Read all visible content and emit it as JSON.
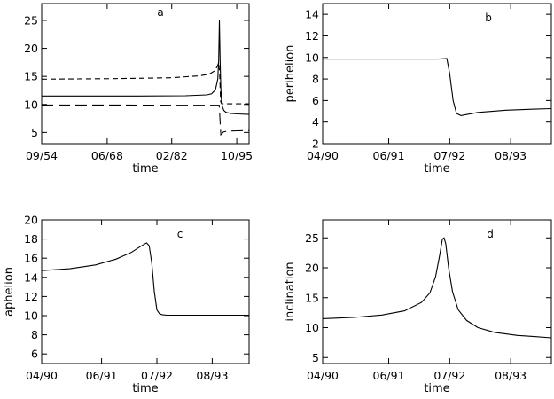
{
  "chart_data": [
    {
      "type": "line",
      "panel_label": "a",
      "xlabel": "time",
      "ylabel": "",
      "xlim": [
        1954.7,
        1998.4
      ],
      "ylim": [
        3,
        28
      ],
      "x_ticks": [
        {
          "value": 1954.7,
          "label": "09/54"
        },
        {
          "value": 1968.5,
          "label": "06/68"
        },
        {
          "value": 1982.1,
          "label": "02/82"
        },
        {
          "value": 1995.8,
          "label": "10/95"
        }
      ],
      "y_ticks": [
        5,
        10,
        15,
        20,
        25
      ],
      "series": [
        {
          "dash": "solid",
          "x": [
            1954.7,
            1975,
            1985,
            1989.5,
            1990.5,
            1991.3,
            1991.8,
            1992.0,
            1992.15,
            1992.3,
            1992.45,
            1992.6,
            1992.8,
            1993.1,
            1993.5,
            1994.5,
            1996,
            1998.4
          ],
          "y": [
            11.5,
            11.5,
            11.55,
            11.7,
            11.9,
            12.6,
            14.5,
            18.0,
            25.0,
            18.0,
            13.0,
            10.6,
            9.5,
            8.9,
            8.6,
            8.4,
            8.3,
            8.2
          ]
        },
        {
          "dash": "short-dash",
          "x": [
            1954.7,
            1970,
            1982,
            1988,
            1990,
            1991.2,
            1991.8,
            1992.0,
            1992.2,
            1992.4,
            1992.6,
            1993.2,
            1994,
            1996,
            1998.4
          ],
          "y": [
            14.5,
            14.6,
            14.75,
            15.1,
            15.4,
            16.0,
            17.0,
            17.5,
            15.5,
            10.5,
            10.15,
            10.1,
            10.1,
            10.1,
            10.1
          ]
        },
        {
          "dash": "long-dash",
          "x": [
            1954.7,
            1970,
            1985,
            1990,
            1991.5,
            1992.1,
            1992.3,
            1992.45,
            1992.6,
            1993.0,
            1994,
            1996,
            1998.4
          ],
          "y": [
            9.9,
            9.9,
            9.85,
            9.85,
            9.85,
            9.85,
            7.0,
            4.6,
            4.7,
            5.1,
            5.25,
            5.3,
            5.35
          ]
        }
      ]
    },
    {
      "type": "line",
      "panel_label": "b",
      "xlabel": "time",
      "ylabel": "perihelion",
      "xlim": [
        1990.25,
        1994.3
      ],
      "ylim": [
        2,
        15
      ],
      "x_ticks": [
        {
          "value": 1990.25,
          "label": "04/90"
        },
        {
          "value": 1991.42,
          "label": "06/91"
        },
        {
          "value": 1992.5,
          "label": "07/92"
        },
        {
          "value": 1993.58,
          "label": "08/93"
        }
      ],
      "y_ticks": [
        2,
        4,
        6,
        8,
        10,
        12,
        14
      ],
      "series": [
        {
          "dash": "solid",
          "x": [
            1990.25,
            1991.0,
            1991.8,
            1992.3,
            1992.45,
            1992.5,
            1992.56,
            1992.62,
            1992.7,
            1992.8,
            1993.0,
            1993.5,
            1994.0,
            1994.3
          ],
          "y": [
            9.85,
            9.85,
            9.85,
            9.85,
            9.9,
            8.5,
            6.0,
            4.8,
            4.6,
            4.7,
            4.9,
            5.1,
            5.2,
            5.25
          ]
        }
      ]
    },
    {
      "type": "line",
      "panel_label": "c",
      "xlabel": "time",
      "ylabel": "aphelion",
      "xlim": [
        1990.25,
        1994.3
      ],
      "ylim": [
        5,
        20
      ],
      "x_ticks": [
        {
          "value": 1990.25,
          "label": "04/90"
        },
        {
          "value": 1991.42,
          "label": "06/91"
        },
        {
          "value": 1992.5,
          "label": "07/92"
        },
        {
          "value": 1993.58,
          "label": "08/93"
        }
      ],
      "y_ticks": [
        6,
        8,
        10,
        12,
        14,
        16,
        18,
        20
      ],
      "series": [
        {
          "dash": "solid",
          "x": [
            1990.25,
            1990.8,
            1991.3,
            1991.7,
            1992.0,
            1992.2,
            1992.3,
            1992.35,
            1992.4,
            1992.45,
            1992.5,
            1992.55,
            1992.6,
            1992.7,
            1993.0,
            1993.5,
            1994.3
          ],
          "y": [
            14.7,
            14.9,
            15.3,
            15.9,
            16.6,
            17.3,
            17.6,
            17.3,
            15.5,
            12.5,
            10.6,
            10.2,
            10.1,
            10.05,
            10.05,
            10.05,
            10.05
          ]
        }
      ]
    },
    {
      "type": "line",
      "panel_label": "d",
      "xlabel": "time",
      "ylabel": "inclination",
      "xlim": [
        1990.25,
        1994.3
      ],
      "ylim": [
        4,
        28
      ],
      "x_ticks": [
        {
          "value": 1990.25,
          "label": "04/90"
        },
        {
          "value": 1991.42,
          "label": "06/91"
        },
        {
          "value": 1992.5,
          "label": "07/92"
        },
        {
          "value": 1993.58,
          "label": "08/93"
        }
      ],
      "y_ticks": [
        5,
        10,
        15,
        20,
        25
      ],
      "series": [
        {
          "dash": "solid",
          "x": [
            1990.25,
            1990.8,
            1991.3,
            1991.7,
            1992.0,
            1992.15,
            1992.25,
            1992.32,
            1992.37,
            1992.4,
            1992.43,
            1992.48,
            1992.55,
            1992.65,
            1992.8,
            1993.0,
            1993.3,
            1993.7,
            1994.0,
            1994.3
          ],
          "y": [
            11.5,
            11.7,
            12.1,
            12.8,
            14.2,
            15.8,
            18.5,
            22.0,
            24.8,
            25.0,
            24.0,
            20.0,
            16.0,
            13.0,
            11.2,
            10.0,
            9.2,
            8.7,
            8.5,
            8.3
          ]
        }
      ]
    }
  ]
}
